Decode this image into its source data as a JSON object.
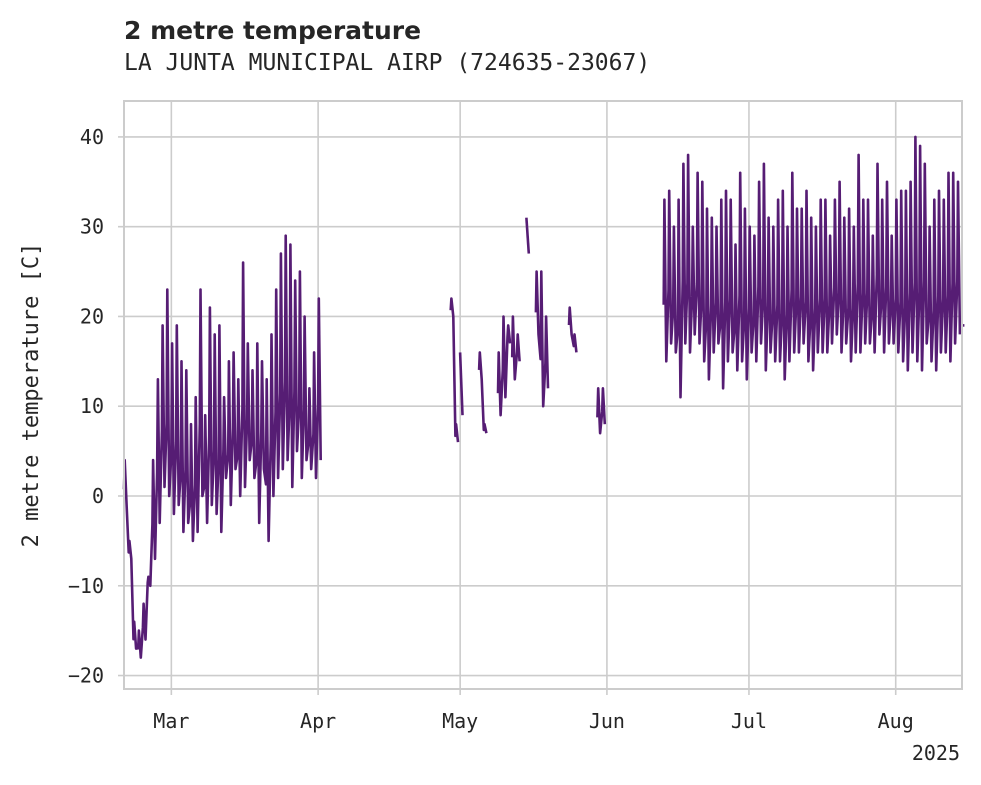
{
  "chart_data": {
    "type": "line",
    "title": "2 metre temperature",
    "subtitle": "LA JUNTA MUNICIPAL AIRP (724635-23067)",
    "ylabel": "2 metre temperature [C]",
    "xlabel": "",
    "ylim": [
      -21.5,
      44
    ],
    "xlim": [
      "2025-02-19",
      "2025-08-15"
    ],
    "yticks": [
      -20,
      -10,
      0,
      10,
      20,
      30,
      40
    ],
    "xticks": [
      {
        "date": "2025-03-01",
        "label": "Mar"
      },
      {
        "date": "2025-04-01",
        "label": "Apr"
      },
      {
        "date": "2025-05-01",
        "label": "May"
      },
      {
        "date": "2025-06-01",
        "label": "Jun"
      },
      {
        "date": "2025-07-01",
        "label": "Jul"
      },
      {
        "date": "2025-08-01",
        "label": "Aug"
      }
    ],
    "year_label": "2025",
    "grid": true,
    "color": "#561d74",
    "series": [
      {
        "segments": [
          {
            "x": [
              "2025-02-19",
              "2025-02-20",
              "2025-02-21",
              "2025-02-22",
              "2025-02-23",
              "2025-02-24",
              "2025-02-25",
              "2025-02-26",
              "2025-02-27",
              "2025-02-28",
              "2025-03-01",
              "2025-03-02",
              "2025-03-03",
              "2025-03-04",
              "2025-03-05",
              "2025-03-06",
              "2025-03-07",
              "2025-03-08",
              "2025-03-09",
              "2025-03-10",
              "2025-03-11",
              "2025-03-12",
              "2025-03-13",
              "2025-03-14",
              "2025-03-15",
              "2025-03-16",
              "2025-03-17",
              "2025-03-18",
              "2025-03-19",
              "2025-03-20",
              "2025-03-21",
              "2025-03-22",
              "2025-03-23",
              "2025-03-24",
              "2025-03-25",
              "2025-03-26",
              "2025-03-27",
              "2025-03-28",
              "2025-03-29",
              "2025-03-30",
              "2025-03-31",
              "2025-04-01"
            ],
            "high": [
              4,
              -5,
              -14,
              -15,
              -12,
              -9,
              4,
              13,
              19,
              23,
              17,
              19,
              15,
              14,
              8,
              11,
              23,
              9,
              21,
              18,
              19,
              11,
              15,
              16,
              13,
              26,
              17,
              14,
              17,
              15,
              13,
              18,
              23,
              27,
              29,
              28,
              24,
              25,
              20,
              12,
              16,
              22
            ],
            "low": [
              -1,
              -7,
              -17,
              -18,
              -16,
              -10,
              -7,
              -3,
              1,
              0,
              -2,
              -1,
              -4,
              -3,
              -5,
              -4,
              0,
              -3,
              -1,
              -2,
              -4,
              2,
              -1,
              3,
              0,
              1,
              4,
              2,
              -3,
              3,
              -5,
              0,
              2,
              3,
              4,
              1,
              5,
              2,
              4,
              3,
              2,
              4
            ]
          },
          {
            "x": [
              "2025-04-29",
              "2025-04-30"
            ],
            "high": [
              22,
              8
            ],
            "low": [
              20,
              6
            ]
          },
          {
            "x": [
              "2025-05-01"
            ],
            "high": [
              16
            ],
            "low": [
              9
            ]
          },
          {
            "x": [
              "2025-05-05",
              "2025-05-06"
            ],
            "high": [
              16,
              8
            ],
            "low": [
              13,
              7
            ]
          },
          {
            "x": [
              "2025-05-09",
              "2025-05-10",
              "2025-05-11"
            ],
            "high": [
              16,
              20,
              19
            ],
            "low": [
              9,
              11,
              17
            ]
          },
          {
            "x": [
              "2025-05-12",
              "2025-05-13"
            ],
            "high": [
              20,
              18
            ],
            "low": [
              13,
              15
            ]
          },
          {
            "x": [
              "2025-05-15"
            ],
            "high": [
              31
            ],
            "low": [
              27
            ]
          },
          {
            "x": [
              "2025-05-17",
              "2025-05-18",
              "2025-05-19"
            ],
            "high": [
              25,
              25,
              20
            ],
            "low": [
              18,
              10,
              12
            ]
          },
          {
            "x": [
              "2025-05-24",
              "2025-05-25"
            ],
            "high": [
              21,
              18
            ],
            "low": [
              18,
              16
            ]
          },
          {
            "x": [
              "2025-05-30",
              "2025-05-31"
            ],
            "high": [
              12,
              12
            ],
            "low": [
              7,
              8
            ]
          },
          {
            "x": [
              "2025-06-13",
              "2025-06-14",
              "2025-06-15",
              "2025-06-16",
              "2025-06-17",
              "2025-06-18",
              "2025-06-19",
              "2025-06-20",
              "2025-06-21",
              "2025-06-22",
              "2025-06-23",
              "2025-06-24",
              "2025-06-25",
              "2025-06-26",
              "2025-06-27",
              "2025-06-28",
              "2025-06-29",
              "2025-06-30",
              "2025-07-01",
              "2025-07-02",
              "2025-07-03",
              "2025-07-04",
              "2025-07-05",
              "2025-07-06",
              "2025-07-07",
              "2025-07-08",
              "2025-07-09",
              "2025-07-10",
              "2025-07-11",
              "2025-07-12",
              "2025-07-13",
              "2025-07-14",
              "2025-07-15",
              "2025-07-16",
              "2025-07-17",
              "2025-07-18",
              "2025-07-19",
              "2025-07-20",
              "2025-07-21",
              "2025-07-22",
              "2025-07-23",
              "2025-07-24",
              "2025-07-25",
              "2025-07-26",
              "2025-07-27",
              "2025-07-28",
              "2025-07-29",
              "2025-07-30",
              "2025-07-31",
              "2025-08-01",
              "2025-08-02",
              "2025-08-03",
              "2025-08-04",
              "2025-08-05",
              "2025-08-06",
              "2025-08-07",
              "2025-08-08",
              "2025-08-09",
              "2025-08-10",
              "2025-08-11",
              "2025-08-12",
              "2025-08-13",
              "2025-08-14"
            ],
            "high": [
              33,
              34,
              30,
              33,
              37,
              38,
              30,
              36,
              35,
              32,
              31,
              30,
              33,
              34,
              33,
              28,
              36,
              32,
              30,
              29,
              35,
              37,
              31,
              30,
              33,
              34,
              30,
              36,
              32,
              32,
              34,
              31,
              30,
              33,
              33,
              29,
              33,
              35,
              31,
              32,
              30,
              38,
              33,
              33,
              29,
              37,
              33,
              35,
              29,
              33,
              34,
              34,
              35,
              40,
              39,
              37,
              30,
              33,
              34,
              33,
              36,
              36,
              35
            ],
            "low": [
              15,
              17,
              16,
              11,
              17,
              16,
              18,
              17,
              15,
              13,
              16,
              17,
              12,
              15,
              16,
              14,
              15,
              13,
              16,
              15,
              17,
              14,
              16,
              15,
              15,
              13,
              15,
              16,
              16,
              17,
              15,
              14,
              16,
              16,
              16,
              17,
              18,
              16,
              17,
              15,
              16,
              16,
              17,
              17,
              16,
              18,
              16,
              17,
              17,
              16,
              15,
              14,
              16,
              15,
              14,
              17,
              15,
              14,
              16,
              16,
              15,
              17,
              18
            ]
          },
          {
            "x": [
              "2025-08-15"
            ],
            "high": [
              19
            ],
            "low": [
              19
            ]
          }
        ]
      }
    ]
  }
}
